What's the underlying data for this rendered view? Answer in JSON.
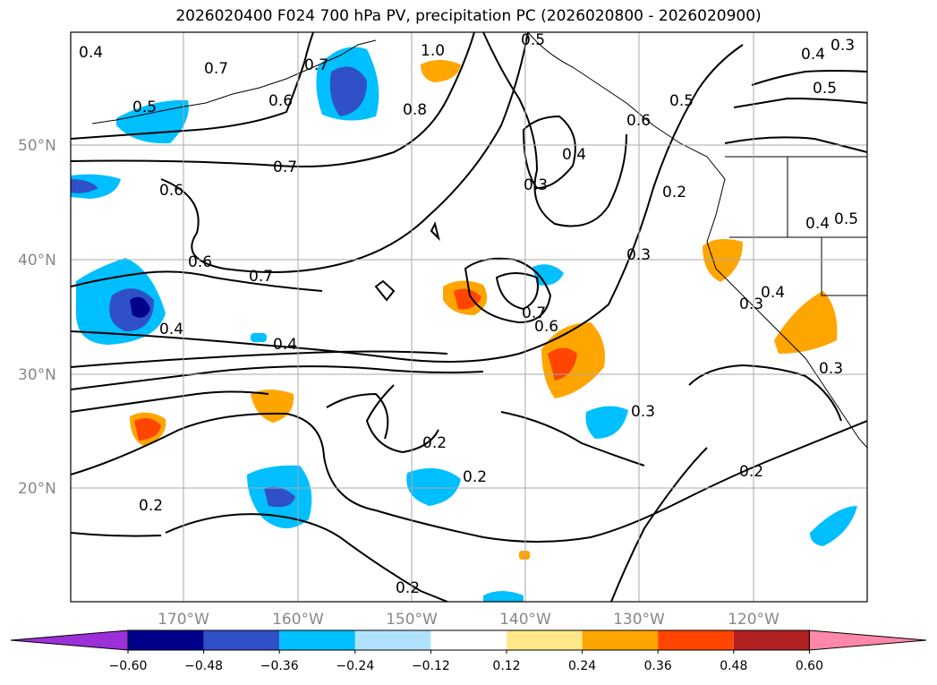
{
  "title": "2026020400 F024 700 hPa PV, precipitation PC (2026020800 - 2026020900)",
  "lat_labels": [
    "50°N",
    "40°N",
    "30°N",
    "20°N"
  ],
  "lon_labels": [
    "170°W",
    "160°W",
    "150°W",
    "140°W",
    "130°W",
    "120°W"
  ],
  "colorbar": {
    "colors": [
      "#9b30d9",
      "#00008b",
      "#3050c8",
      "#00bfff",
      "#b0e2ff",
      "#ffffff",
      "#ffe88a",
      "#ffa500",
      "#ff4500",
      "#b22222",
      "#ff88aa"
    ],
    "tick_labels": [
      "−0.60",
      "−0.48",
      "−0.36",
      "−0.24",
      "−0.12",
      "0.12",
      "0.24",
      "0.36",
      "0.48",
      "0.60"
    ]
  },
  "contour_labels": [
    "0.4",
    "0.7",
    "0.7",
    "0.6",
    "0.5",
    "1.0",
    "0.8",
    "0.5",
    "0.4",
    "0.3",
    "0.4",
    "0.6",
    "0.5",
    "0.5",
    "0.7",
    "0.6",
    "0.3",
    "0.2",
    "0.4",
    "0.5",
    "0.6",
    "0.7",
    "0.4",
    "0.4",
    "0.7",
    "0.6",
    "0.3",
    "0.4",
    "0.3",
    "0.3",
    "0.2",
    "0.2",
    "0.3",
    "0.2",
    "0.2",
    "0.2"
  ]
}
